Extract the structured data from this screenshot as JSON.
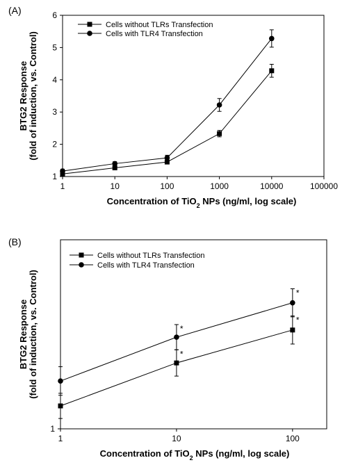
{
  "chart_data": [
    {
      "type": "line",
      "panel_label": "(A)",
      "x_label": [
        "Concentration of TiO",
        "2",
        " NPs  (ng/ml, log scale)"
      ],
      "y_label": [
        "BTG2 Response",
        "(fold of induction, vs. Control)"
      ],
      "x_log": true,
      "xlim": [
        1,
        100000
      ],
      "xticks": [
        1,
        10,
        100,
        1000,
        10000,
        100000
      ],
      "ylim": [
        1,
        6
      ],
      "yticks": [
        1,
        2,
        3,
        4,
        5,
        6
      ],
      "x": [
        1,
        10,
        100,
        1000,
        10000
      ],
      "series": [
        {
          "name": "Cells without TLRs Transfection",
          "color": "#000000",
          "marker": "square",
          "values": [
            1.08,
            1.27,
            1.45,
            2.33,
            4.28
          ],
          "errors": [
            0.06,
            0.06,
            0.06,
            0.1,
            0.2
          ]
        },
        {
          "name": "Cells with TLR4 Transfection",
          "color": "#000000",
          "marker": "circle",
          "values": [
            1.17,
            1.4,
            1.58,
            3.22,
            5.28
          ],
          "errors": [
            0.06,
            0.06,
            0.08,
            0.2,
            0.27
          ]
        }
      ]
    },
    {
      "type": "line",
      "panel_label": "(B)",
      "x_label": [
        "Concentration of TiO",
        "2",
        " NPs (ng/ml, log scale)"
      ],
      "y_label": [
        "BTG2 Response",
        "(fold of induction, vs. Control)"
      ],
      "x_log": true,
      "xlim": [
        1,
        197
      ],
      "xticks": [
        1,
        10,
        100
      ],
      "ylim": [
        1,
        1.66
      ],
      "yticks": [
        1
      ],
      "x": [
        1,
        10,
        100
      ],
      "series": [
        {
          "name": "Cells without TLRs Transfection",
          "color": "#000000",
          "marker": "square",
          "values": [
            1.08,
            1.23,
            1.345
          ],
          "errors": [
            0.044,
            0.046,
            0.049
          ],
          "annotations": [
            null,
            "*",
            "*"
          ]
        },
        {
          "name": "Cells with TLR4 Transfection",
          "color": "#000000",
          "marker": "circle",
          "values": [
            1.167,
            1.32,
            1.44
          ],
          "errors": [
            0.05,
            0.044,
            0.049
          ],
          "annotations": [
            null,
            "*",
            "*"
          ]
        }
      ]
    }
  ]
}
